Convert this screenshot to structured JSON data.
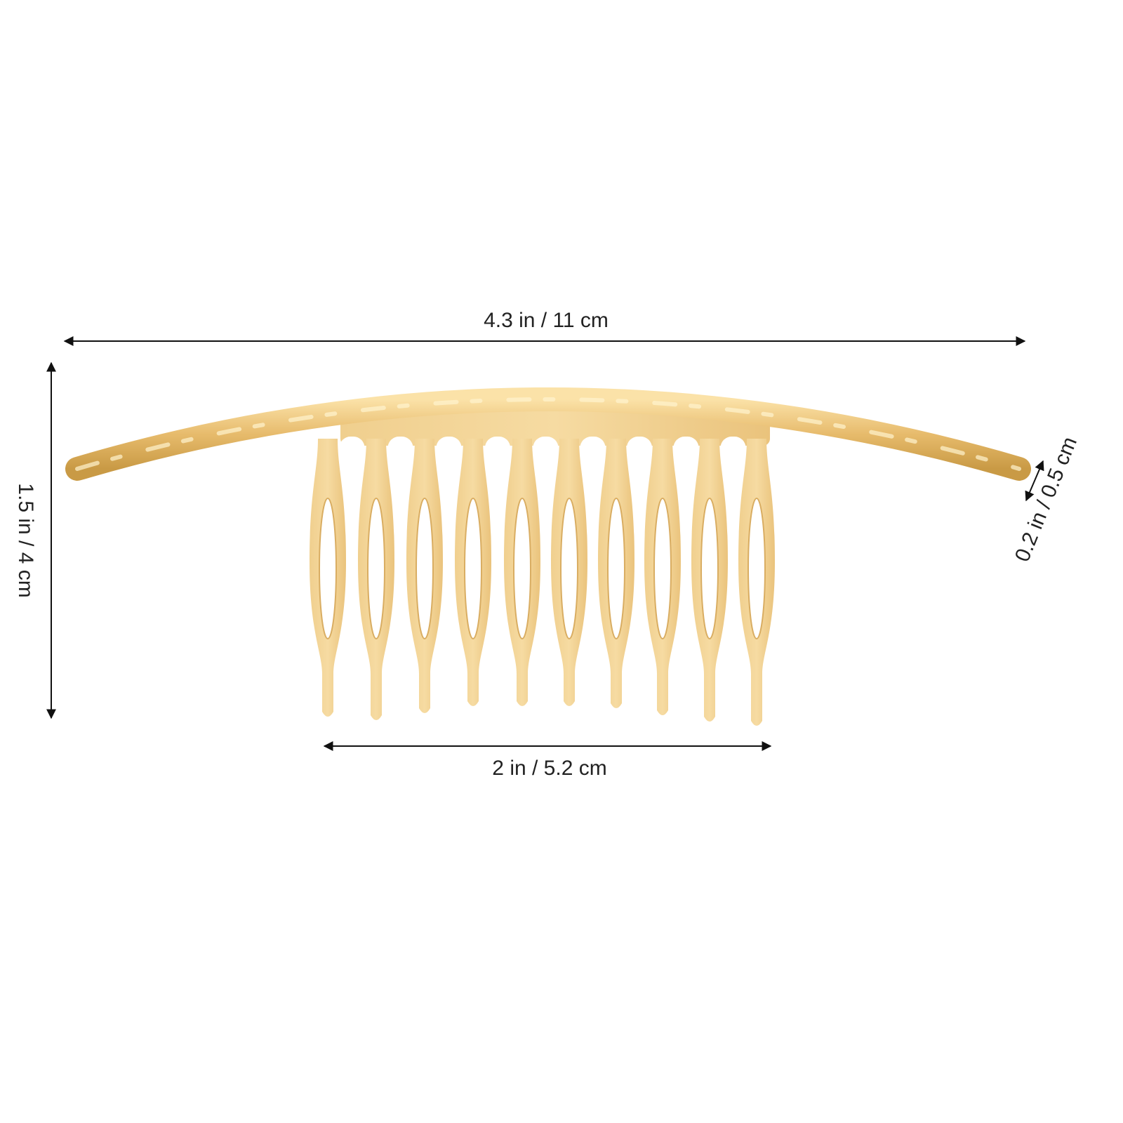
{
  "dimensions": {
    "total_width": "4.3 in / 11 cm",
    "height": "1.5 in / 4 cm",
    "thickness": "0.2 in / 0.5 cm",
    "comb_width": "2 in / 5.2 cm"
  }
}
